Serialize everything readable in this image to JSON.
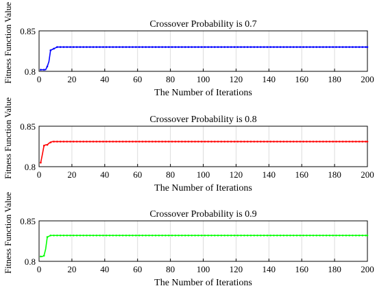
{
  "chart_data": [
    {
      "type": "line",
      "title": "Crossover Probability is 0.7",
      "xlabel": "The Number of Iterations",
      "ylabel": "Fitness Function Value",
      "xlim": [
        0,
        200
      ],
      "ylim": [
        0.8,
        0.85
      ],
      "xticks": [
        "0",
        "20",
        "40",
        "60",
        "80",
        "100",
        "120",
        "140",
        "160",
        "180",
        "200"
      ],
      "yticks": [
        "0.8",
        "0.85"
      ],
      "grid": "vertical",
      "color": "#0000ff",
      "series": [
        {
          "x": [
            1,
            2,
            3,
            4,
            5,
            6,
            7,
            8,
            9,
            10,
            11,
            12,
            200
          ],
          "values": [
            0.802,
            0.802,
            0.802,
            0.802,
            0.806,
            0.812,
            0.826,
            0.827,
            0.828,
            0.829,
            0.83,
            0.83,
            0.83
          ]
        }
      ]
    },
    {
      "type": "line",
      "title": "Crossover Probability is 0.8",
      "xlabel": "The Number of Iterations",
      "ylabel": "Fitness Function Value",
      "xlim": [
        0,
        200
      ],
      "ylim": [
        0.8,
        0.85
      ],
      "xticks": [
        "0",
        "20",
        "40",
        "60",
        "80",
        "100",
        "120",
        "140",
        "160",
        "180",
        "200"
      ],
      "yticks": [
        "0.8",
        "0.85"
      ],
      "grid": "vertical",
      "color": "#ff0000",
      "series": [
        {
          "x": [
            1,
            2,
            3,
            4,
            5,
            6,
            7,
            8,
            9,
            10,
            200
          ],
          "values": [
            0.805,
            0.815,
            0.826,
            0.827,
            0.827,
            0.829,
            0.83,
            0.831,
            0.831,
            0.831,
            0.831
          ]
        }
      ]
    },
    {
      "type": "line",
      "title": "Crossover Probability is 0.9",
      "xlabel": "The Number of Iterations",
      "ylabel": "Fitness Function Value",
      "xlim": [
        0,
        200
      ],
      "ylim": [
        0.8,
        0.85
      ],
      "xticks": [
        "0",
        "20",
        "40",
        "60",
        "80",
        "100",
        "120",
        "140",
        "160",
        "180",
        "200"
      ],
      "yticks": [
        "0.8",
        "0.85"
      ],
      "grid": "vertical",
      "color": "#00ff00",
      "series": [
        {
          "x": [
            1,
            2,
            3,
            4,
            5,
            6,
            7,
            8,
            200
          ],
          "values": [
            0.806,
            0.806,
            0.807,
            0.815,
            0.83,
            0.831,
            0.832,
            0.832,
            0.832
          ]
        }
      ]
    }
  ]
}
